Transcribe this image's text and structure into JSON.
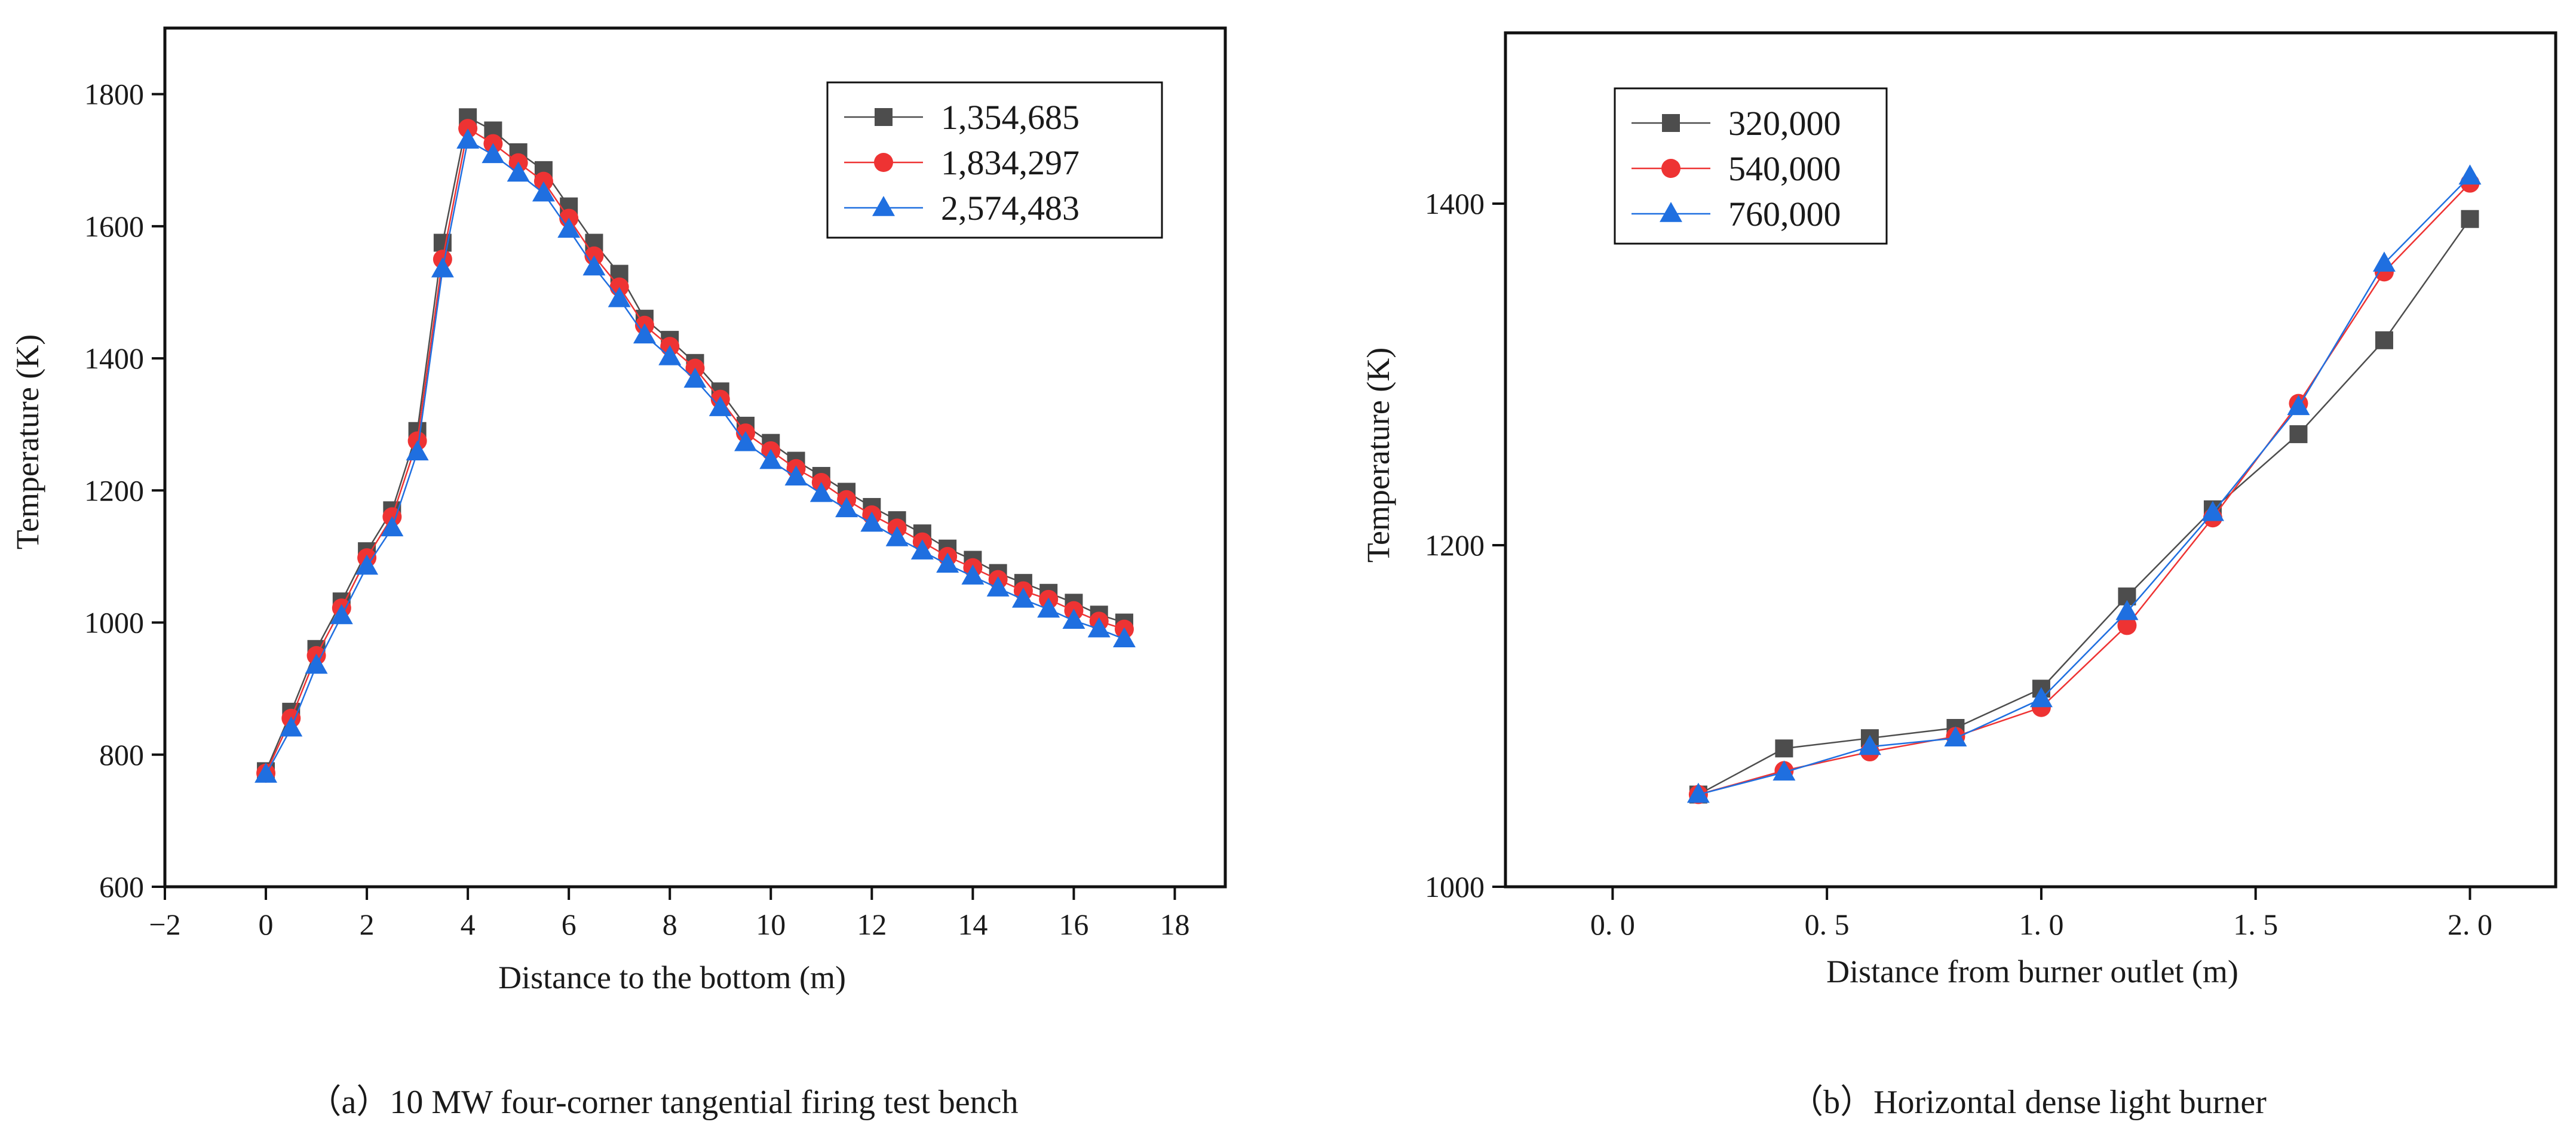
{
  "figure": {
    "captions": {
      "a": "（a）10 MW four-corner tangential firing test bench",
      "b": "（b）Horizontal dense light burner"
    }
  },
  "chart_data": [
    {
      "type": "line",
      "title": "",
      "xlabel": "Distance to the bottom (m)",
      "ylabel": "Temperature (K)",
      "xlim": [
        -2,
        19
      ],
      "ylim": [
        600,
        1900
      ],
      "xticks": [
        "−2",
        "0",
        "2",
        "4",
        "6",
        "8",
        "10",
        "12",
        "14",
        "16",
        "18"
      ],
      "xtick_values": [
        -2,
        0,
        2,
        4,
        6,
        8,
        10,
        12,
        14,
        16,
        18
      ],
      "yticks": [
        "600",
        "800",
        "1000",
        "1200",
        "1400",
        "1600",
        "1800"
      ],
      "ytick_values": [
        600,
        800,
        1000,
        1200,
        1400,
        1600,
        1800
      ],
      "legend_position": "top-right",
      "x": [
        0,
        0.5,
        1,
        1.5,
        2,
        2.5,
        3,
        3.5,
        4,
        4.5,
        5,
        5.5,
        6,
        6.5,
        7,
        7.5,
        8,
        8.5,
        9,
        9.5,
        10,
        10.5,
        11,
        11.5,
        12,
        12.5,
        13,
        13.5,
        14,
        14.5,
        15,
        15.5,
        16,
        16.5,
        17
      ],
      "series": [
        {
          "name": "1,354,685",
          "marker": "square",
          "color": "#4d4d4d",
          "values": [
            775,
            865,
            960,
            1032,
            1108,
            1170,
            1290,
            1575,
            1765,
            1745,
            1712,
            1685,
            1630,
            1575,
            1528,
            1460,
            1428,
            1393,
            1350,
            1298,
            1272,
            1245,
            1222,
            1198,
            1175,
            1155,
            1135,
            1112,
            1095,
            1075,
            1060,
            1045,
            1030,
            1012,
            1000
          ]
        },
        {
          "name": "1,834,297",
          "marker": "circle",
          "color": "#ee3333",
          "values": [
            772,
            855,
            950,
            1022,
            1098,
            1160,
            1275,
            1550,
            1748,
            1725,
            1696,
            1668,
            1612,
            1555,
            1508,
            1450,
            1418,
            1385,
            1338,
            1287,
            1260,
            1233,
            1212,
            1186,
            1163,
            1143,
            1122,
            1100,
            1083,
            1065,
            1048,
            1035,
            1018,
            1002,
            990
          ]
        },
        {
          "name": "2,574,483",
          "marker": "triangle",
          "color": "#1f6fe0",
          "values": [
            770,
            840,
            935,
            1010,
            1085,
            1143,
            1258,
            1535,
            1730,
            1708,
            1680,
            1650,
            1595,
            1538,
            1490,
            1435,
            1402,
            1368,
            1325,
            1272,
            1245,
            1220,
            1195,
            1172,
            1150,
            1128,
            1108,
            1088,
            1070,
            1052,
            1035,
            1020,
            1003,
            990,
            975
          ]
        }
      ]
    },
    {
      "type": "line",
      "title": "",
      "xlabel": "Distance from burner outlet (m)",
      "ylabel": "Temperature (K)",
      "xlim": [
        -0.25,
        2.2
      ],
      "ylim": [
        1000,
        1500
      ],
      "xticks": [
        "0. 0",
        "0. 5",
        "1. 0",
        "1. 5",
        "2. 0"
      ],
      "xtick_values": [
        0,
        0.5,
        1.0,
        1.5,
        2.0
      ],
      "yticks": [
        "1000",
        "1200",
        "1400"
      ],
      "ytick_values": [
        1000,
        1200,
        1400
      ],
      "legend_position": "top-left",
      "x": [
        0.2,
        0.4,
        0.6,
        0.8,
        1.0,
        1.2,
        1.4,
        1.6,
        1.8,
        2.0
      ],
      "series": [
        {
          "name": "320,000",
          "marker": "square",
          "color": "#4d4d4d",
          "values": [
            1054,
            1081,
            1087,
            1093,
            1116,
            1170,
            1221,
            1265,
            1320,
            1391
          ]
        },
        {
          "name": "540,000",
          "marker": "circle",
          "color": "#ee3333",
          "values": [
            1054,
            1068,
            1079,
            1088,
            1105,
            1153,
            1216,
            1283,
            1360,
            1412
          ]
        },
        {
          "name": "760,000",
          "marker": "triangle",
          "color": "#1f6fe0",
          "values": [
            1054,
            1067,
            1082,
            1087,
            1110,
            1161,
            1219,
            1281,
            1365,
            1416
          ]
        }
      ]
    }
  ]
}
